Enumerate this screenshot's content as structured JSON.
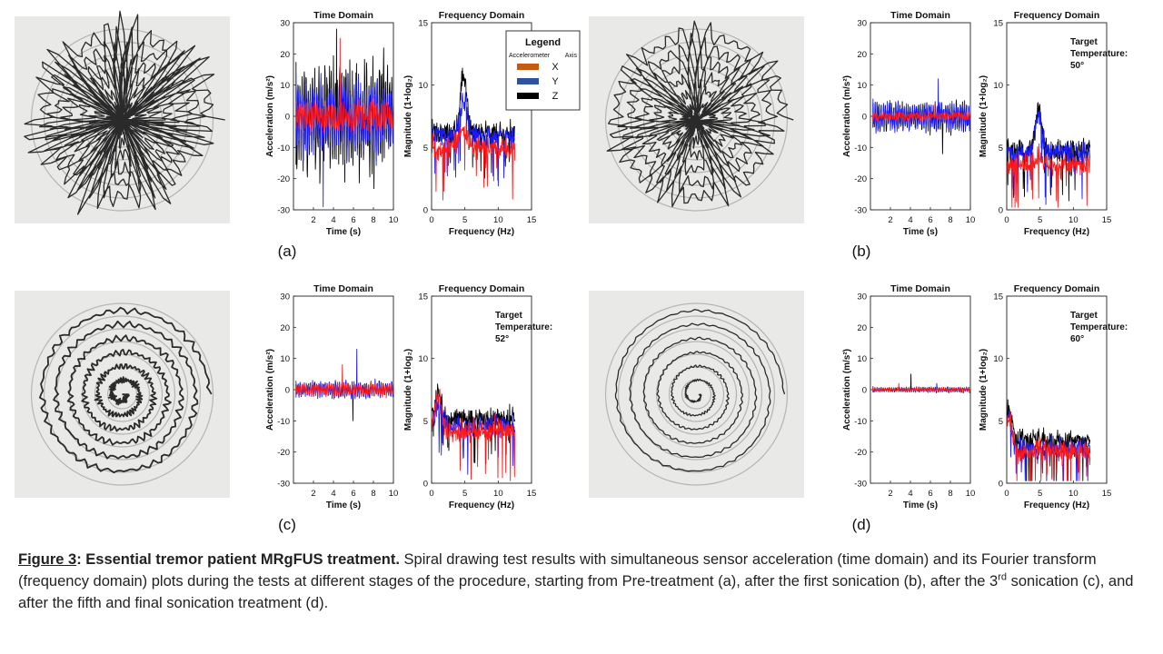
{
  "figure_caption": {
    "label": "Figure 3",
    "colon": ":",
    "lead": " Essential tremor patient MRgFUS treatment.",
    "text_1": " Spiral drawing test results with simultaneous sensor acceleration (time domain) and its Fourier transform (frequency domain) plots during the tests at different stages of the procedure, starting from Pre-treatment (a), after the first sonication (b), after the 3",
    "sup": "rd",
    "text_2": " sonication (c), and after the fifth and final sonication treatment (d)."
  },
  "legend": {
    "title": "Legend",
    "col1": "Accelerometer",
    "col2": "Axis",
    "entries": [
      {
        "label": "X",
        "color": "#c55a11"
      },
      {
        "label": "Y",
        "color": "#2f52a0"
      },
      {
        "label": "Z",
        "color": "#000000"
      }
    ]
  },
  "series_colors": {
    "X": "#ff1a1a",
    "Y": "#1a1aff",
    "Z": "#000000"
  },
  "panels": [
    {
      "id": "a",
      "label": "(a)",
      "temperature_label": "",
      "temperature_value": ""
    },
    {
      "id": "b",
      "label": "(b)",
      "temperature_label": "Target Temperature:",
      "temperature_value": "50°"
    },
    {
      "id": "c",
      "label": "(c)",
      "temperature_label": "Target Temperature:",
      "temperature_value": "52°"
    },
    {
      "id": "d",
      "label": "(d)",
      "temperature_label": "Target Temperature:",
      "temperature_value": "60°"
    }
  ],
  "chart_data": [
    {
      "panel": "a",
      "type": "line",
      "title": "Time Domain",
      "xlabel": "Time (s)",
      "ylabel": "Acceleration (m/s²)",
      "xlim": [
        0,
        10
      ],
      "ylim": [
        -30,
        30
      ],
      "xticks": [
        2,
        4,
        6,
        8,
        10
      ],
      "yticks": [
        -30,
        -20,
        -10,
        0,
        10,
        20,
        30
      ],
      "series": [
        {
          "name": "Z",
          "amplitude": 15,
          "peak": 28
        },
        {
          "name": "Y",
          "amplitude": 10,
          "peak": -29
        },
        {
          "name": "X",
          "amplitude": 4,
          "peak": 25
        }
      ]
    },
    {
      "panel": "a",
      "type": "line",
      "title": "Frequency Domain",
      "xlabel": "Frequency (Hz)",
      "ylabel": "Magnitude (1+log₂)",
      "xlim": [
        0,
        15
      ],
      "ylim": [
        0,
        15
      ],
      "xticks": [
        0,
        5,
        10,
        15
      ],
      "yticks": [
        0,
        5,
        10,
        15
      ],
      "series": [
        {
          "name": "Z",
          "base": 6.2,
          "peak_freq": 4.8,
          "peak_value": 10.8
        },
        {
          "name": "Y",
          "base": 6.0,
          "peak_freq": 4.8,
          "peak_value": 9.0
        },
        {
          "name": "X",
          "base": 5.0,
          "peak_freq": 4.8,
          "peak_value": 6.5
        }
      ]
    },
    {
      "panel": "b",
      "type": "line",
      "title": "Time Domain",
      "xlabel": "Time (s)",
      "ylabel": "Acceleration (m/s²)",
      "xlim": [
        0,
        10
      ],
      "ylim": [
        -30,
        30
      ],
      "xticks": [
        2,
        4,
        6,
        8,
        10
      ],
      "yticks": [
        -30,
        -20,
        -10,
        0,
        10,
        20,
        30
      ],
      "series": [
        {
          "name": "Z",
          "amplitude": 4,
          "peak": -12
        },
        {
          "name": "Y",
          "amplitude": 4,
          "peak": 12
        },
        {
          "name": "X",
          "amplitude": 1.2,
          "peak": 4
        }
      ]
    },
    {
      "panel": "b",
      "type": "line",
      "title": "Frequency Domain",
      "xlabel": "Frequency (Hz)",
      "ylabel": "Magnitude (1+log₂)",
      "xlim": [
        0,
        15
      ],
      "ylim": [
        0,
        15
      ],
      "xticks": [
        0,
        5,
        10,
        15
      ],
      "yticks": [
        0,
        5,
        10,
        15
      ],
      "series": [
        {
          "name": "Z",
          "base": 4.8,
          "peak_freq": 4.8,
          "peak_value": 8.2
        },
        {
          "name": "Y",
          "base": 4.6,
          "peak_freq": 4.8,
          "peak_value": 7.5
        },
        {
          "name": "X",
          "base": 3.6,
          "peak_freq": 4.8,
          "peak_value": 4.5
        }
      ]
    },
    {
      "panel": "c",
      "type": "line",
      "title": "Time Domain",
      "xlabel": "Time (s)",
      "ylabel": "Acceleration (m/s²)",
      "xlim": [
        0,
        10
      ],
      "ylim": [
        -30,
        30
      ],
      "xticks": [
        2,
        4,
        6,
        8,
        10
      ],
      "yticks": [
        -30,
        -20,
        -10,
        0,
        10,
        20,
        30
      ],
      "series": [
        {
          "name": "Z",
          "amplitude": 1.8,
          "peak": -10
        },
        {
          "name": "Y",
          "amplitude": 2.2,
          "peak": 13
        },
        {
          "name": "X",
          "amplitude": 1.8,
          "peak": 8
        }
      ]
    },
    {
      "panel": "c",
      "type": "line",
      "title": "Frequency Domain",
      "xlabel": "Frequency (Hz)",
      "ylabel": "Magnitude (1+log₂)",
      "xlim": [
        0,
        15
      ],
      "ylim": [
        0,
        15
      ],
      "xticks": [
        0,
        5,
        10,
        15
      ],
      "yticks": [
        0,
        5,
        10,
        15
      ],
      "series": [
        {
          "name": "Z",
          "base": 5.2,
          "peak_freq": 1,
          "peak_value": 7.0
        },
        {
          "name": "Y",
          "base": 4.6,
          "peak_freq": 1,
          "peak_value": 6.5
        },
        {
          "name": "X",
          "base": 4.2,
          "peak_freq": 1,
          "peak_value": 7.0
        }
      ]
    },
    {
      "panel": "d",
      "type": "line",
      "title": "Time Domain",
      "xlabel": "Time (s)",
      "ylabel": "Acceleration (m/s²)",
      "xlim": [
        0,
        10
      ],
      "ylim": [
        -30,
        30
      ],
      "xticks": [
        2,
        4,
        6,
        8,
        10
      ],
      "yticks": [
        -30,
        -20,
        -10,
        0,
        10,
        20,
        30
      ],
      "series": [
        {
          "name": "Z",
          "amplitude": 0.7,
          "peak": 5
        },
        {
          "name": "Y",
          "amplitude": 0.6,
          "peak": 2
        },
        {
          "name": "X",
          "amplitude": 0.6,
          "peak": 2
        }
      ]
    },
    {
      "panel": "d",
      "type": "line",
      "title": "Frequency Domain",
      "xlabel": "Frequency (Hz)",
      "ylabel": "Magnitude (1+log₂)",
      "xlim": [
        0,
        15
      ],
      "ylim": [
        0,
        15
      ],
      "xticks": [
        0,
        5,
        10,
        15
      ],
      "yticks": [
        0,
        5,
        10,
        15
      ],
      "series": [
        {
          "name": "Z",
          "base": 3.4,
          "peak_freq": 0.3,
          "peak_value": 5.8
        },
        {
          "name": "Y",
          "base": 2.8,
          "peak_freq": 0.3,
          "peak_value": 5.0
        },
        {
          "name": "X",
          "base": 2.6,
          "peak_freq": 0.3,
          "peak_value": 5.2
        }
      ]
    }
  ]
}
